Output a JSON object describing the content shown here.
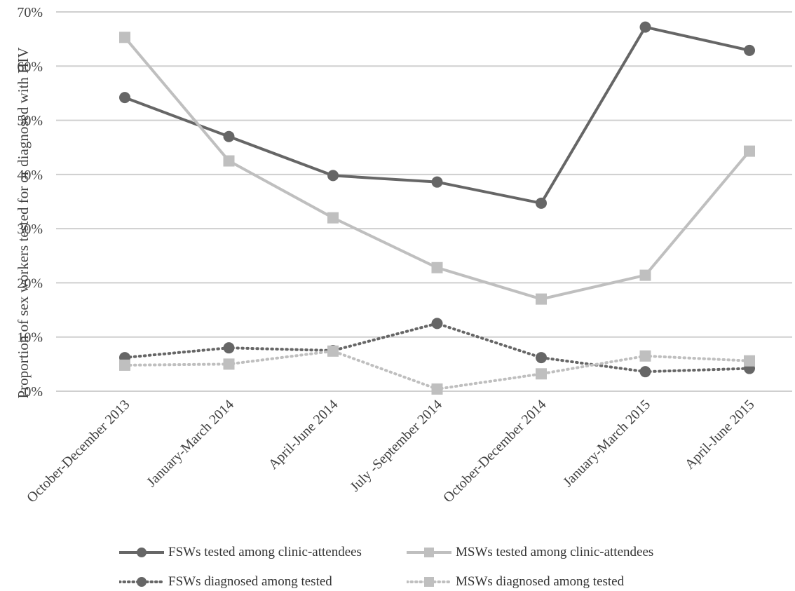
{
  "chart_data": {
    "type": "line",
    "title": "",
    "xlabel": "",
    "ylabel": "Proportion of sex workers  tested for  or diagnosed  with HIV",
    "ylim": [
      0,
      70
    ],
    "yticks": [
      "0%",
      "10%",
      "20%",
      "30%",
      "40%",
      "50%",
      "60%",
      "70%"
    ],
    "ytick_values": [
      0,
      10,
      20,
      30,
      40,
      50,
      60,
      70
    ],
    "grid": "horizontal",
    "legend_position": "bottom",
    "categories": [
      "October-December 2013",
      "January-March 2014",
      "April-June 2014",
      "July -September 2014",
      "October-December 2014",
      "January-March 2015",
      "April-June 2015"
    ],
    "series": [
      {
        "name": "FSWs tested among clinic-attendees",
        "values": [
          54.2,
          47.0,
          39.8,
          38.6,
          34.7,
          67.2,
          62.9
        ],
        "color": "#666666",
        "line": "solid",
        "marker": "circle"
      },
      {
        "name": "MSWs tested among clinic-attendees",
        "values": [
          65.3,
          42.5,
          32.0,
          22.8,
          17.0,
          21.4,
          44.3
        ],
        "color": "#bfbfbf",
        "line": "solid",
        "marker": "square"
      },
      {
        "name": "FSWs diagnosed among tested",
        "values": [
          6.2,
          8.0,
          7.5,
          12.5,
          6.2,
          3.6,
          4.2
        ],
        "color": "#666666",
        "line": "dotted",
        "marker": "circle"
      },
      {
        "name": "MSWs diagnosed among tested",
        "values": [
          4.8,
          5.0,
          7.4,
          0.4,
          3.2,
          6.5,
          5.6
        ],
        "color": "#bfbfbf",
        "line": "dotted",
        "marker": "square"
      }
    ]
  }
}
